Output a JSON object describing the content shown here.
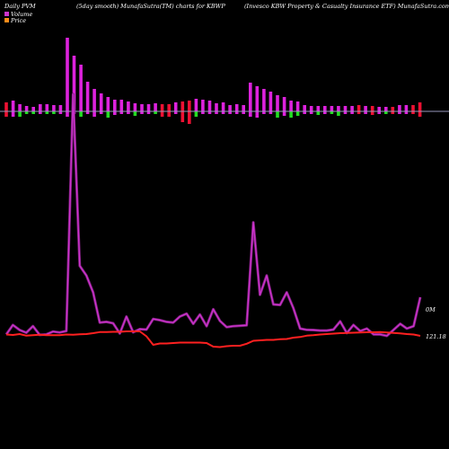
{
  "header": {
    "left": "Daily PVM",
    "center": "(5day smooth) MunafaSutra(TM) charts for KBWP",
    "right": "(Invesco KBW Property & Casualty Insurance ETF) MunafaSutra.com"
  },
  "legend": [
    {
      "label": "Volume",
      "color": "#cc33cc"
    },
    {
      "label": "Price",
      "color": "#ff8c1a"
    }
  ],
  "colors": {
    "background": "#000000",
    "volume_line": "#cc33cc",
    "price_line": "#ff2020",
    "bar_up": "#dd22dd",
    "bar_down": "#ee1133",
    "bar_green": "#22dd22",
    "baseline": "#9999bb",
    "text": "#ffffff"
  },
  "chart_data": {
    "type": "line",
    "price_label": "121.18",
    "volume_label": "0M",
    "volume_line": [
      6,
      45,
      24,
      13,
      40,
      4,
      6,
      18,
      14,
      20,
      1000,
      290,
      250,
      180,
      55,
      58,
      52,
      10,
      80,
      15,
      28,
      26,
      70,
      65,
      58,
      55,
      80,
      92,
      50,
      88,
      40,
      110,
      62,
      36,
      40,
      42,
      44,
      470,
      170,
      250,
      130,
      128,
      180,
      115,
      30,
      25,
      24,
      22,
      22,
      26,
      60,
      12,
      45,
      20,
      30,
      6,
      6,
      0,
      25,
      50,
      30,
      40,
      160
    ],
    "price_line": [
      6,
      4,
      8,
      1,
      3,
      5,
      3,
      3,
      3,
      6,
      5,
      7,
      8,
      12,
      17,
      17,
      18,
      18,
      20,
      20,
      20,
      -2,
      -40,
      -34,
      -34,
      -32,
      -30,
      -30,
      -30,
      -30,
      -32,
      -48,
      -50,
      -46,
      -44,
      -44,
      -35,
      -22,
      -20,
      -18,
      -18,
      -15,
      -14,
      -8,
      -5,
      1,
      3,
      6,
      8,
      10,
      12,
      13,
      14,
      15,
      16,
      16,
      17,
      15,
      13,
      11,
      8,
      6,
      0
    ],
    "bars": [
      {
        "h": 10,
        "d": 6,
        "c": "down"
      },
      {
        "h": 12,
        "d": 6,
        "c": "up"
      },
      {
        "h": 8,
        "d": 6,
        "c": "green"
      },
      {
        "h": 6,
        "d": 3,
        "c": "green"
      },
      {
        "h": 5,
        "d": 3,
        "c": "green"
      },
      {
        "h": 8,
        "d": 3,
        "c": "up"
      },
      {
        "h": 8,
        "d": 3,
        "c": "green"
      },
      {
        "h": 7,
        "d": 3,
        "c": "green"
      },
      {
        "h": 7,
        "d": 3,
        "c": "up"
      },
      {
        "h": 82,
        "d": 6,
        "c": "up"
      },
      {
        "h": 62,
        "d": 3,
        "c": "up"
      },
      {
        "h": 52,
        "d": 6,
        "c": "green"
      },
      {
        "h": 33,
        "d": 3,
        "c": "up"
      },
      {
        "h": 25,
        "d": 6,
        "c": "up"
      },
      {
        "h": 20,
        "d": 3,
        "c": "up"
      },
      {
        "h": 16,
        "d": 7,
        "c": "green"
      },
      {
        "h": 13,
        "d": 4,
        "c": "up"
      },
      {
        "h": 13,
        "d": 3,
        "c": "up"
      },
      {
        "h": 11,
        "d": 3,
        "c": "up"
      },
      {
        "h": 9,
        "d": 5,
        "c": "green"
      },
      {
        "h": 8,
        "d": 3,
        "c": "up"
      },
      {
        "h": 8,
        "d": 3,
        "c": "up"
      },
      {
        "h": 9,
        "d": 3,
        "c": "green"
      },
      {
        "h": 8,
        "d": 6,
        "c": "down"
      },
      {
        "h": 8,
        "d": 6,
        "c": "down"
      },
      {
        "h": 10,
        "d": 3,
        "c": "up"
      },
      {
        "h": 11,
        "d": 12,
        "c": "down"
      },
      {
        "h": 12,
        "d": 14,
        "c": "down"
      },
      {
        "h": 14,
        "d": 6,
        "c": "green"
      },
      {
        "h": 13,
        "d": 3,
        "c": "up"
      },
      {
        "h": 12,
        "d": 3,
        "c": "up"
      },
      {
        "h": 9,
        "d": 3,
        "c": "up"
      },
      {
        "h": 10,
        "d": 3,
        "c": "up"
      },
      {
        "h": 7,
        "d": 3,
        "c": "up"
      },
      {
        "h": 8,
        "d": 3,
        "c": "up"
      },
      {
        "h": 7,
        "d": 3,
        "c": "up"
      },
      {
        "h": 32,
        "d": 6,
        "c": "up"
      },
      {
        "h": 28,
        "d": 7,
        "c": "up"
      },
      {
        "h": 25,
        "d": 3,
        "c": "up"
      },
      {
        "h": 22,
        "d": 3,
        "c": "up"
      },
      {
        "h": 18,
        "d": 7,
        "c": "green"
      },
      {
        "h": 16,
        "d": 5,
        "c": "up"
      },
      {
        "h": 12,
        "d": 7,
        "c": "green"
      },
      {
        "h": 11,
        "d": 5,
        "c": "green"
      },
      {
        "h": 7,
        "d": 3,
        "c": "up"
      },
      {
        "h": 6,
        "d": 3,
        "c": "up"
      },
      {
        "h": 6,
        "d": 4,
        "c": "green"
      },
      {
        "h": 6,
        "d": 3,
        "c": "up"
      },
      {
        "h": 6,
        "d": 3,
        "c": "green"
      },
      {
        "h": 6,
        "d": 5,
        "c": "green"
      },
      {
        "h": 6,
        "d": 3,
        "c": "up"
      },
      {
        "h": 6,
        "d": 3,
        "c": "up"
      },
      {
        "h": 7,
        "d": 3,
        "c": "down"
      },
      {
        "h": 6,
        "d": 3,
        "c": "up"
      },
      {
        "h": 6,
        "d": 4,
        "c": "down"
      },
      {
        "h": 5,
        "d": 3,
        "c": "up"
      },
      {
        "h": 5,
        "d": 3,
        "c": "green"
      },
      {
        "h": 5,
        "d": 3,
        "c": "down"
      },
      {
        "h": 7,
        "d": 3,
        "c": "up"
      },
      {
        "h": 7,
        "d": 3,
        "c": "up"
      },
      {
        "h": 7,
        "d": 3,
        "c": "down"
      },
      {
        "h": 10,
        "d": 6,
        "c": "down"
      }
    ]
  }
}
